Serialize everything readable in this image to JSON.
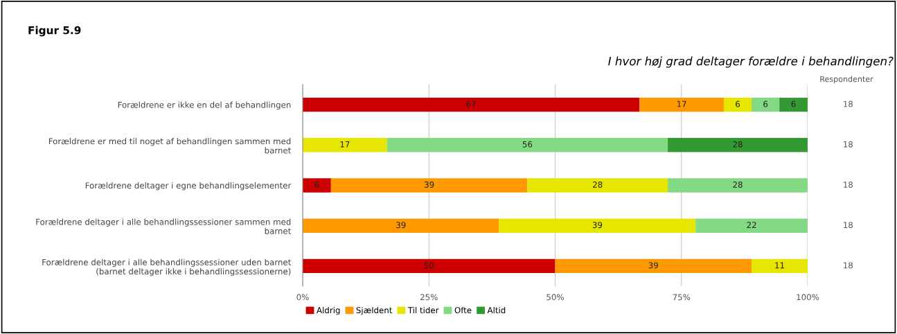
{
  "chart_data": {
    "type": "bar",
    "orientation": "horizontal",
    "stacked": true,
    "title": "I hvor høj grad deltager forældre i behandlingen?",
    "categories": [
      "Forældrene er ikke en del af behandlingen",
      "Forældrene er med til noget af behandlingen sammen med\nbarnet",
      "Forældrene deltager i egne behandlingselementer",
      "Forældrene deltager i alle behandlingssessioner sammen med\nbarnet",
      "Forældrene deltager i alle behandlingssessioner uden barnet\n(barnet deltager ikke i behandlingssessionerne)"
    ],
    "series": [
      {
        "name": "Aldrig",
        "color": "#cc0000",
        "values": [
          66.7,
          null,
          5.6,
          null,
          50.0
        ],
        "value_labels": [
          "67",
          null,
          "6",
          null,
          "50"
        ]
      },
      {
        "name": "Sjældent",
        "color": "#ff9900",
        "values": [
          16.7,
          null,
          38.9,
          38.9,
          38.9
        ],
        "value_labels": [
          "17",
          null,
          "39",
          "39",
          "39"
        ]
      },
      {
        "name": "Til tider",
        "color": "#e6e600",
        "values": [
          5.5,
          16.7,
          27.8,
          38.9,
          11.1
        ],
        "value_labels": [
          "6",
          "17",
          "28",
          "39",
          "11"
        ]
      },
      {
        "name": "Ofte",
        "color": "#84d984",
        "values": [
          5.5,
          55.6,
          27.7,
          22.2,
          null
        ],
        "value_labels": [
          "6",
          "56",
          "28",
          "22",
          null
        ]
      },
      {
        "name": "Altid",
        "color": "#339933",
        "values": [
          5.6,
          27.7,
          null,
          null,
          null
        ],
        "value_labels": [
          "6",
          "28",
          null,
          null,
          null
        ]
      }
    ],
    "xlim": [
      0,
      100
    ],
    "xticks": [
      {
        "value": 0,
        "label": "0%"
      },
      {
        "value": 25,
        "label": "25%"
      },
      {
        "value": 50,
        "label": "50%"
      },
      {
        "value": 75,
        "label": "75%"
      },
      {
        "value": 100,
        "label": "100%"
      }
    ],
    "grid": "x",
    "legend": "bottom",
    "annotations": [
      "Figur 5.9",
      "Respondenter",
      "18",
      "18",
      "18",
      "18",
      "18"
    ]
  }
}
